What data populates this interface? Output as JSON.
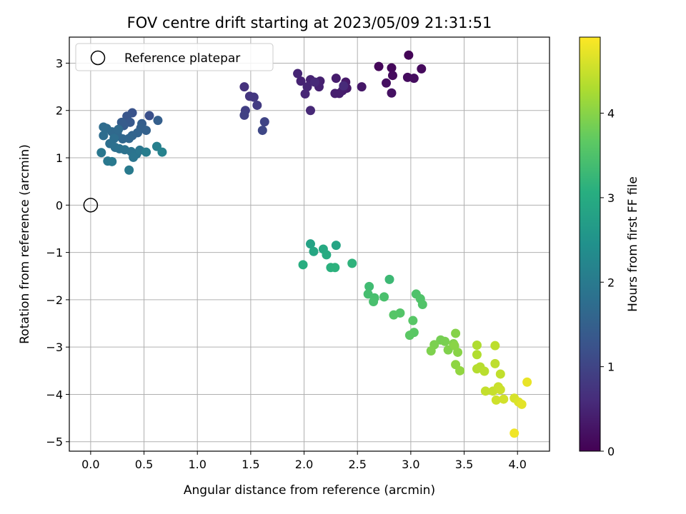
{
  "chart_data": {
    "type": "scatter",
    "title": "FOV centre drift starting at 2023/05/09 21:31:51",
    "xlabel": "Angular distance from reference (arcmin)",
    "ylabel": "Rotation from reference (arcmin)",
    "xlim": [
      -0.2,
      4.3
    ],
    "ylim": [
      -5.2,
      3.55
    ],
    "xticks": [
      0.0,
      0.5,
      1.0,
      1.5,
      2.0,
      2.5,
      3.0,
      3.5,
      4.0
    ],
    "xtick_labels": [
      "0.0",
      "0.5",
      "1.0",
      "1.5",
      "2.0",
      "2.5",
      "3.0",
      "3.5",
      "4.0"
    ],
    "yticks": [
      3,
      2,
      1,
      0,
      -1,
      -2,
      -3,
      -4,
      -5
    ],
    "ytick_labels": [
      "3",
      "2",
      "1",
      "0",
      "−1",
      "−2",
      "−3",
      "−4",
      "−5"
    ],
    "grid": true,
    "legend": {
      "position": "top-left",
      "label": "Reference platepar"
    },
    "reference_point": {
      "x": 0.0,
      "y": 0.0
    },
    "colorbar": {
      "label": "Hours from first FF file",
      "range": [
        0,
        4.9
      ],
      "ticks": [
        0,
        1,
        2,
        3,
        4
      ],
      "tick_labels": [
        "0",
        "1",
        "2",
        "3",
        "4"
      ],
      "colormap": "viridis"
    },
    "points": [
      {
        "x": 2.98,
        "y": 3.17,
        "c": 0.05
      },
      {
        "x": 2.7,
        "y": 2.93,
        "c": 0.08
      },
      {
        "x": 2.82,
        "y": 2.9,
        "c": 0.1
      },
      {
        "x": 3.1,
        "y": 2.88,
        "c": 0.12
      },
      {
        "x": 2.83,
        "y": 2.74,
        "c": 0.14
      },
      {
        "x": 2.97,
        "y": 2.7,
        "c": 0.16
      },
      {
        "x": 3.03,
        "y": 2.68,
        "c": 0.18
      },
      {
        "x": 2.77,
        "y": 2.58,
        "c": 0.2
      },
      {
        "x": 2.82,
        "y": 2.37,
        "c": 0.22
      },
      {
        "x": 2.54,
        "y": 2.5,
        "c": 0.3
      },
      {
        "x": 2.39,
        "y": 2.6,
        "c": 0.33
      },
      {
        "x": 2.4,
        "y": 2.47,
        "c": 0.35
      },
      {
        "x": 2.3,
        "y": 2.68,
        "c": 0.37
      },
      {
        "x": 2.36,
        "y": 2.42,
        "c": 0.38
      },
      {
        "x": 2.33,
        "y": 2.36,
        "c": 0.4
      },
      {
        "x": 2.29,
        "y": 2.36,
        "c": 0.41
      },
      {
        "x": 2.15,
        "y": 2.62,
        "c": 0.43
      },
      {
        "x": 2.14,
        "y": 2.5,
        "c": 0.45
      },
      {
        "x": 2.06,
        "y": 2.65,
        "c": 0.47
      },
      {
        "x": 1.97,
        "y": 2.62,
        "c": 0.48
      },
      {
        "x": 1.94,
        "y": 2.78,
        "c": 0.5
      },
      {
        "x": 2.03,
        "y": 2.5,
        "c": 0.51
      },
      {
        "x": 2.01,
        "y": 2.35,
        "c": 0.53
      },
      {
        "x": 2.06,
        "y": 2.0,
        "c": 0.55
      },
      {
        "x": 2.1,
        "y": 2.6,
        "c": 0.57
      },
      {
        "x": 2.37,
        "y": 2.52,
        "c": 0.58
      },
      {
        "x": 1.44,
        "y": 2.5,
        "c": 0.7
      },
      {
        "x": 1.49,
        "y": 2.3,
        "c": 0.75
      },
      {
        "x": 1.53,
        "y": 2.28,
        "c": 0.8
      },
      {
        "x": 1.56,
        "y": 2.11,
        "c": 0.85
      },
      {
        "x": 1.45,
        "y": 2.0,
        "c": 0.9
      },
      {
        "x": 1.44,
        "y": 1.9,
        "c": 0.95
      },
      {
        "x": 1.63,
        "y": 1.76,
        "c": 1.0
      },
      {
        "x": 1.61,
        "y": 1.58,
        "c": 1.05
      },
      {
        "x": 0.55,
        "y": 1.89,
        "c": 1.2
      },
      {
        "x": 0.39,
        "y": 1.95,
        "c": 1.25
      },
      {
        "x": 0.34,
        "y": 1.88,
        "c": 1.3
      },
      {
        "x": 0.37,
        "y": 1.75,
        "c": 1.35
      },
      {
        "x": 0.31,
        "y": 1.68,
        "c": 1.4
      },
      {
        "x": 0.29,
        "y": 1.75,
        "c": 1.42
      },
      {
        "x": 0.48,
        "y": 1.72,
        "c": 1.45
      },
      {
        "x": 0.63,
        "y": 1.79,
        "c": 1.48
      },
      {
        "x": 0.47,
        "y": 1.63,
        "c": 1.5
      },
      {
        "x": 0.52,
        "y": 1.58,
        "c": 1.52
      },
      {
        "x": 0.44,
        "y": 1.53,
        "c": 1.55
      },
      {
        "x": 0.39,
        "y": 1.47,
        "c": 1.57
      },
      {
        "x": 0.36,
        "y": 1.41,
        "c": 1.6
      },
      {
        "x": 0.3,
        "y": 1.4,
        "c": 1.62
      },
      {
        "x": 0.25,
        "y": 1.5,
        "c": 1.64
      },
      {
        "x": 0.2,
        "y": 1.55,
        "c": 1.66
      },
      {
        "x": 0.26,
        "y": 1.6,
        "c": 1.68
      },
      {
        "x": 0.15,
        "y": 1.62,
        "c": 1.7
      },
      {
        "x": 0.12,
        "y": 1.65,
        "c": 1.72
      },
      {
        "x": 0.12,
        "y": 1.47,
        "c": 1.74
      },
      {
        "x": 0.22,
        "y": 1.41,
        "c": 1.76
      },
      {
        "x": 0.18,
        "y": 1.3,
        "c": 1.78
      },
      {
        "x": 0.23,
        "y": 1.22,
        "c": 1.8
      },
      {
        "x": 0.27,
        "y": 1.19,
        "c": 1.82
      },
      {
        "x": 0.32,
        "y": 1.17,
        "c": 1.84
      },
      {
        "x": 0.38,
        "y": 1.13,
        "c": 1.86
      },
      {
        "x": 0.43,
        "y": 1.08,
        "c": 1.88
      },
      {
        "x": 0.4,
        "y": 1.01,
        "c": 1.9
      },
      {
        "x": 0.46,
        "y": 1.16,
        "c": 1.92
      },
      {
        "x": 0.1,
        "y": 1.11,
        "c": 1.94
      },
      {
        "x": 0.16,
        "y": 0.93,
        "c": 1.96
      },
      {
        "x": 0.2,
        "y": 0.92,
        "c": 1.98
      },
      {
        "x": 0.36,
        "y": 0.74,
        "c": 2.0
      },
      {
        "x": 0.52,
        "y": 1.12,
        "c": 2.05
      },
      {
        "x": 0.62,
        "y": 1.24,
        "c": 2.1
      },
      {
        "x": 0.67,
        "y": 1.12,
        "c": 2.15
      },
      {
        "x": 2.06,
        "y": -0.82,
        "c": 2.8
      },
      {
        "x": 2.3,
        "y": -0.85,
        "c": 2.85
      },
      {
        "x": 2.09,
        "y": -0.98,
        "c": 2.9
      },
      {
        "x": 2.18,
        "y": -0.93,
        "c": 2.95
      },
      {
        "x": 2.21,
        "y": -1.05,
        "c": 3.0
      },
      {
        "x": 1.99,
        "y": -1.26,
        "c": 3.05
      },
      {
        "x": 2.25,
        "y": -1.32,
        "c": 3.1
      },
      {
        "x": 2.29,
        "y": -1.32,
        "c": 3.12
      },
      {
        "x": 2.45,
        "y": -1.23,
        "c": 3.15
      },
      {
        "x": 2.8,
        "y": -1.57,
        "c": 3.3
      },
      {
        "x": 2.61,
        "y": -1.72,
        "c": 3.35
      },
      {
        "x": 2.6,
        "y": -1.88,
        "c": 3.4
      },
      {
        "x": 2.66,
        "y": -1.96,
        "c": 3.42
      },
      {
        "x": 2.65,
        "y": -2.04,
        "c": 3.44
      },
      {
        "x": 2.75,
        "y": -1.94,
        "c": 3.46
      },
      {
        "x": 3.05,
        "y": -1.88,
        "c": 3.5
      },
      {
        "x": 3.09,
        "y": -1.98,
        "c": 3.52
      },
      {
        "x": 3.11,
        "y": -2.1,
        "c": 3.54
      },
      {
        "x": 2.9,
        "y": -2.28,
        "c": 3.56
      },
      {
        "x": 2.84,
        "y": -2.32,
        "c": 3.58
      },
      {
        "x": 3.02,
        "y": -2.44,
        "c": 3.6
      },
      {
        "x": 3.03,
        "y": -2.69,
        "c": 3.62
      },
      {
        "x": 2.99,
        "y": -2.75,
        "c": 3.64
      },
      {
        "x": 3.28,
        "y": -2.85,
        "c": 3.85
      },
      {
        "x": 3.32,
        "y": -2.88,
        "c": 3.88
      },
      {
        "x": 3.22,
        "y": -2.95,
        "c": 3.9
      },
      {
        "x": 3.19,
        "y": -3.08,
        "c": 3.92
      },
      {
        "x": 3.35,
        "y": -3.06,
        "c": 3.94
      },
      {
        "x": 3.4,
        "y": -2.93,
        "c": 3.96
      },
      {
        "x": 3.42,
        "y": -2.71,
        "c": 3.98
      },
      {
        "x": 3.44,
        "y": -3.11,
        "c": 4.0
      },
      {
        "x": 3.41,
        "y": -2.97,
        "c": 4.02
      },
      {
        "x": 3.42,
        "y": -3.37,
        "c": 4.05
      },
      {
        "x": 3.46,
        "y": -3.5,
        "c": 4.08
      },
      {
        "x": 3.62,
        "y": -2.96,
        "c": 4.3
      },
      {
        "x": 3.62,
        "y": -3.16,
        "c": 4.32
      },
      {
        "x": 3.62,
        "y": -3.46,
        "c": 4.34
      },
      {
        "x": 3.65,
        "y": -3.42,
        "c": 4.36
      },
      {
        "x": 3.69,
        "y": -3.51,
        "c": 4.38
      },
      {
        "x": 3.79,
        "y": -2.97,
        "c": 4.4
      },
      {
        "x": 3.79,
        "y": -3.35,
        "c": 4.42
      },
      {
        "x": 3.84,
        "y": -3.57,
        "c": 4.44
      },
      {
        "x": 3.7,
        "y": -3.93,
        "c": 4.46
      },
      {
        "x": 3.77,
        "y": -3.93,
        "c": 4.48
      },
      {
        "x": 3.82,
        "y": -3.84,
        "c": 4.5
      },
      {
        "x": 3.84,
        "y": -3.9,
        "c": 4.52
      },
      {
        "x": 3.8,
        "y": -4.12,
        "c": 4.54
      },
      {
        "x": 3.87,
        "y": -4.1,
        "c": 4.56
      },
      {
        "x": 3.97,
        "y": -4.08,
        "c": 4.6
      },
      {
        "x": 4.01,
        "y": -4.16,
        "c": 4.65
      },
      {
        "x": 4.04,
        "y": -4.21,
        "c": 4.7
      },
      {
        "x": 4.09,
        "y": -3.74,
        "c": 4.75
      },
      {
        "x": 3.97,
        "y": -4.82,
        "c": 4.8
      }
    ]
  }
}
